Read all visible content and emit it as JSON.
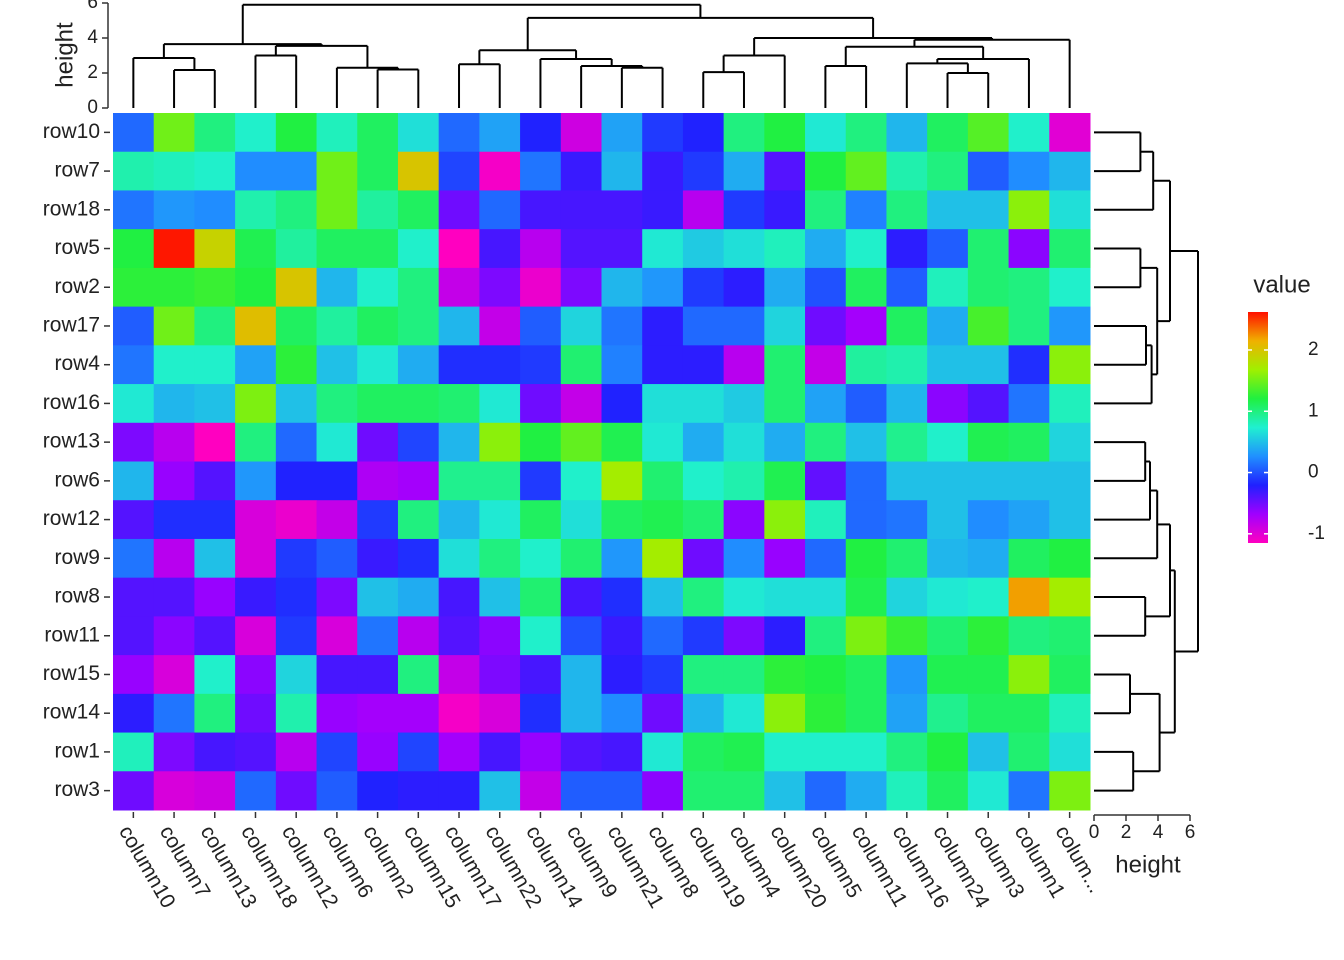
{
  "chart_data": {
    "type": "heatmap",
    "rows": [
      "row10",
      "row7",
      "row18",
      "row5",
      "row2",
      "row17",
      "row4",
      "row16",
      "row13",
      "row6",
      "row12",
      "row9",
      "row8",
      "row11",
      "row15",
      "row14",
      "row1",
      "row3"
    ],
    "columns": [
      "column10",
      "column7",
      "column13",
      "column18",
      "column12",
      "column6",
      "column2",
      "column15",
      "column17",
      "column22",
      "column14",
      "column9",
      "column21",
      "column8",
      "column19",
      "column4",
      "column20",
      "column5",
      "column11",
      "column16",
      "column24",
      "column3",
      "column1",
      "colum..."
    ],
    "values": [
      [
        0.1,
        1.5,
        1.0,
        0.75,
        1.2,
        0.8,
        1.1,
        0.65,
        0.1,
        0.35,
        -0.2,
        -0.9,
        0.35,
        -0.1,
        -0.2,
        1.0,
        1.2,
        0.7,
        1.0,
        0.45,
        1.1,
        1.4,
        0.75,
        -1.0
      ],
      [
        0.85,
        0.8,
        0.75,
        0.25,
        0.25,
        1.5,
        1.1,
        2.0,
        -0.05,
        -1.1,
        0.15,
        -0.3,
        0.45,
        -0.3,
        -0.1,
        0.4,
        -0.4,
        1.2,
        1.45,
        0.85,
        1.0,
        0.05,
        0.25,
        0.45
      ],
      [
        0.15,
        0.3,
        0.25,
        0.85,
        1.0,
        1.5,
        0.9,
        1.1,
        -0.5,
        0.1,
        -0.35,
        -0.35,
        -0.35,
        -0.3,
        -0.8,
        -0.1,
        -0.3,
        1.0,
        0.2,
        1.0,
        0.5,
        0.5,
        1.6,
        0.65
      ],
      [
        1.2,
        2.6,
        1.9,
        1.15,
        0.9,
        1.1,
        1.1,
        0.75,
        -1.15,
        -0.35,
        -0.8,
        -0.4,
        -0.4,
        0.7,
        0.55,
        0.65,
        0.8,
        0.4,
        0.75,
        -0.25,
        0.05,
        1.05,
        -0.6,
        1.05
      ],
      [
        1.25,
        1.25,
        1.3,
        1.2,
        2.0,
        0.45,
        0.75,
        1.0,
        -0.85,
        -0.55,
        -1.05,
        -0.55,
        0.45,
        0.3,
        -0.1,
        -0.25,
        0.4,
        0,
        1.1,
        0.05,
        0.8,
        1.05,
        1.0,
        0.75
      ],
      [
        0.05,
        1.5,
        1.0,
        2.05,
        1.1,
        0.9,
        1.1,
        1.0,
        0.45,
        -0.85,
        0.05,
        0.6,
        0.15,
        -0.25,
        0.1,
        0.1,
        0.6,
        -0.5,
        -0.7,
        1.1,
        0.4,
        1.35,
        1.0,
        0.3
      ],
      [
        0.15,
        0.75,
        0.75,
        0.35,
        1.25,
        0.5,
        0.7,
        0.4,
        -0.15,
        -0.15,
        -0.1,
        1.05,
        0.2,
        -0.25,
        -0.25,
        -0.8,
        1.05,
        -0.85,
        0.9,
        0.85,
        0.5,
        0.5,
        -0.15,
        1.6
      ],
      [
        0.7,
        0.45,
        0.5,
        1.55,
        0.5,
        1.0,
        1.1,
        1.1,
        1.05,
        0.7,
        -0.5,
        -0.85,
        -0.2,
        0.65,
        0.65,
        0.55,
        1.05,
        0.35,
        0.05,
        0.45,
        -0.6,
        -0.4,
        0.15,
        0.8
      ],
      [
        -0.55,
        -0.8,
        -1.15,
        1.0,
        0.1,
        0.7,
        -0.5,
        -0.05,
        0.45,
        1.6,
        1.2,
        1.45,
        1.15,
        0.7,
        0.4,
        0.65,
        0.4,
        1.0,
        0.5,
        0.95,
        0.75,
        1.15,
        1.1,
        0.6
      ],
      [
        0.45,
        -0.65,
        -0.4,
        0.3,
        -0.2,
        -0.2,
        -0.75,
        -0.7,
        0.95,
        0.95,
        -0.1,
        0.75,
        1.7,
        1.05,
        0.75,
        0.85,
        1.15,
        -0.45,
        0.1,
        0.5,
        0.5,
        0.5,
        0.5,
        0.5
      ],
      [
        -0.4,
        -0.15,
        -0.15,
        -0.95,
        -1.05,
        -0.85,
        -0.1,
        1.0,
        0.45,
        0.7,
        1.1,
        0.65,
        1.1,
        1.15,
        1.05,
        -0.6,
        1.6,
        0.8,
        0.1,
        0.15,
        0.5,
        0.25,
        0.35,
        0.5
      ],
      [
        0.15,
        -0.8,
        0.5,
        -0.95,
        -0.1,
        0.05,
        -0.3,
        -0.15,
        0.65,
        1.0,
        0.75,
        1.05,
        0.3,
        1.7,
        -0.5,
        0.25,
        -0.65,
        0.1,
        1.2,
        1.05,
        0.45,
        0.4,
        1.1,
        1.2
      ],
      [
        -0.4,
        -0.4,
        -0.65,
        -0.3,
        -0.15,
        -0.55,
        0.5,
        0.4,
        -0.35,
        0.5,
        1.05,
        -0.35,
        -0.15,
        0.5,
        1.0,
        0.7,
        0.65,
        0.65,
        1.15,
        0.6,
        0.7,
        0.75,
        2.2,
        1.7
      ],
      [
        -0.4,
        -0.6,
        -0.4,
        -0.95,
        -0.1,
        -0.95,
        0.15,
        -0.8,
        -0.4,
        -0.6,
        0.75,
        0,
        -0.3,
        0.1,
        -0.1,
        -0.55,
        -0.25,
        1.0,
        1.55,
        1.3,
        1.05,
        1.25,
        1.0,
        1.05
      ],
      [
        -0.65,
        -0.95,
        0.75,
        -0.6,
        0.6,
        -0.35,
        -0.35,
        1.0,
        -0.85,
        -0.55,
        -0.35,
        0.45,
        -0.25,
        -0.1,
        1.0,
        1.0,
        1.25,
        1.2,
        1.1,
        0.3,
        1.15,
        1.15,
        1.6,
        1.1
      ],
      [
        -0.25,
        0.15,
        1.0,
        -0.5,
        0.85,
        -0.65,
        -0.7,
        -0.7,
        -1.1,
        -0.95,
        -0.15,
        0.45,
        0.25,
        -0.5,
        0.45,
        0.7,
        1.6,
        1.25,
        1.1,
        0.35,
        0.95,
        1.1,
        1.1,
        0.8
      ],
      [
        0.8,
        -0.55,
        -0.35,
        -0.4,
        -0.8,
        -0.05,
        -0.65,
        -0.05,
        -0.7,
        -0.35,
        -0.65,
        -0.4,
        -0.35,
        0.7,
        1.1,
        1.15,
        0.75,
        0.75,
        0.75,
        1.0,
        1.2,
        0.5,
        1.05,
        0.65
      ],
      [
        -0.5,
        -0.95,
        -0.9,
        0.1,
        -0.5,
        0.05,
        -0.2,
        -0.25,
        -0.25,
        0.5,
        -0.85,
        0.05,
        0.05,
        -0.6,
        1.05,
        1.05,
        0.5,
        0.1,
        0.4,
        0.8,
        1.1,
        0.7,
        0.15,
        1.55
      ]
    ],
    "legend_title": "value",
    "zlim": [
      -1.15,
      2.62
    ],
    "zticks": [
      -1,
      0,
      1,
      2
    ],
    "colors": [
      "#ff00c0",
      "#a000ff",
      "#2020ff",
      "#2090ff",
      "#20f0d0",
      "#20f040",
      "#a0f000",
      "#f0b000",
      "#ff1000"
    ],
    "col_axis": {
      "label": "height",
      "lim": [
        0,
        6
      ],
      "ticks": [
        0,
        2,
        4,
        6
      ]
    },
    "row_axis": {
      "label": "height",
      "lim": [
        0,
        6
      ],
      "ticks": [
        0,
        2,
        4,
        6
      ]
    },
    "col_dendrogram": {
      "height": 5.9,
      "children": [
        {
          "height": 3.65,
          "children": [
            {
              "height": 2.86,
              "children": [
                0,
                {
                  "height": 2.17,
                  "children": [
                    1,
                    2
                  ]
                }
              ]
            },
            {
              "height": 3.55,
              "children": [
                {
                  "height": 3.0,
                  "children": [
                    3,
                    4
                  ]
                },
                {
                  "height": 2.3,
                  "children": [
                    5,
                    {
                      "height": 2.2,
                      "children": [
                        6,
                        7
                      ]
                    }
                  ]
                }
              ]
            }
          ]
        },
        {
          "height": 5.15,
          "children": [
            {
              "height": 3.3,
              "children": [
                {
                  "height": 2.5,
                  "children": [
                    8,
                    9
                  ]
                },
                {
                  "height": 2.8,
                  "children": [
                    10,
                    {
                      "height": 2.4,
                      "children": [
                        11,
                        {
                          "height": 2.3,
                          "children": [
                            12,
                            13
                          ]
                        }
                      ]
                    }
                  ]
                }
              ]
            },
            {
              "height": 4.0,
              "children": [
                {
                  "height": 3.0,
                  "children": [
                    {
                      "height": 2.05,
                      "children": [
                        14,
                        15
                      ]
                    },
                    16
                  ]
                },
                {
                  "height": 3.9,
                  "children": [
                    {
                      "height": 3.5,
                      "children": [
                        {
                          "height": 2.4,
                          "children": [
                            17,
                            18
                          ]
                        },
                        {
                          "height": 2.8,
                          "children": [
                            {
                              "height": 2.55,
                              "children": [
                                19,
                                {
                                  "height": 2.0,
                                  "children": [
                                    20,
                                    21
                                  ]
                                }
                              ]
                            },
                            22
                          ]
                        }
                      ]
                    },
                    23
                  ]
                }
              ]
            }
          ]
        }
      ]
    },
    "row_dendrogram": {
      "height": 6.5,
      "children": [
        {
          "height": 4.75,
          "children": [
            {
              "height": 3.7,
              "children": [
                {
                  "height": 2.9,
                  "children": [
                    0,
                    1
                  ]
                },
                2
              ]
            },
            {
              "height": 3.95,
              "children": [
                {
                  "height": 2.9,
                  "children": [
                    3,
                    4
                  ]
                },
                {
                  "height": 3.6,
                  "children": [
                    {
                      "height": 3.25,
                      "children": [
                        5,
                        6
                      ]
                    },
                    7
                  ]
                }
              ]
            }
          ]
        },
        {
          "height": 5.05,
          "children": [
            {
              "height": 4.75,
              "children": [
                {
                  "height": 3.95,
                  "children": [
                    {
                      "height": 3.5,
                      "children": [
                        {
                          "height": 3.2,
                          "children": [
                            8,
                            9
                          ]
                        },
                        10
                      ]
                    },
                    11
                  ]
                },
                {
                  "height": 3.2,
                  "children": [
                    12,
                    13
                  ]
                }
              ]
            },
            {
              "height": 4.1,
              "children": [
                {
                  "height": 2.25,
                  "children": [
                    14,
                    15
                  ]
                },
                {
                  "height": 2.45,
                  "children": [
                    16,
                    17
                  ]
                }
              ]
            }
          ]
        }
      ]
    }
  }
}
